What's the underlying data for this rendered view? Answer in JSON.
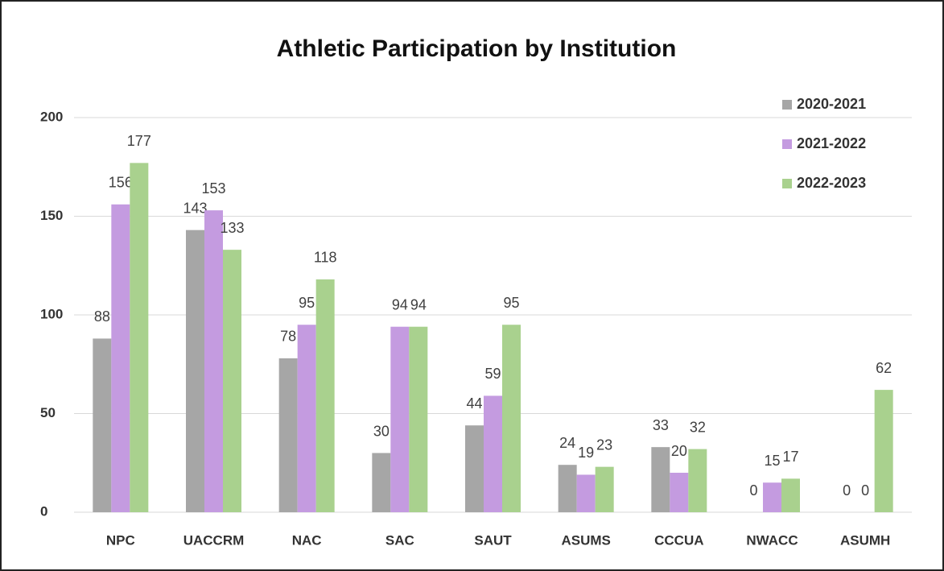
{
  "chart_data": {
    "type": "bar",
    "title": "Athletic Participation by Institution",
    "categories": [
      "NPC",
      "UACCRM",
      "NAC",
      "SAC",
      "SAUT",
      "ASUMS",
      "CCCUA",
      "NWACC",
      "ASUMH"
    ],
    "series": [
      {
        "name": "2020-2021",
        "color": "#a6a6a6",
        "values": [
          88,
          143,
          78,
          30,
          44,
          24,
          33,
          0,
          0
        ]
      },
      {
        "name": "2021-2022",
        "color": "#c49be0",
        "values": [
          156,
          153,
          95,
          94,
          59,
          19,
          20,
          15,
          0
        ]
      },
      {
        "name": "2022-2023",
        "color": "#a9d18e",
        "values": [
          177,
          133,
          118,
          94,
          95,
          23,
          32,
          17,
          62
        ]
      }
    ],
    "ylim": [
      0,
      200
    ],
    "yticks": [
      0,
      50,
      100,
      150,
      200
    ],
    "grid": true,
    "legend": "top-right"
  }
}
